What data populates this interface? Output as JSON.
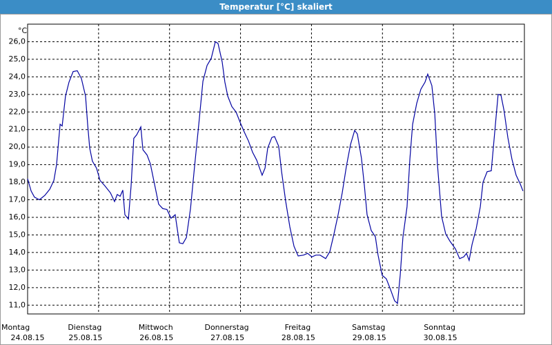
{
  "chart_data": {
    "type": "line",
    "title": "Temperatur [°C] skaliert",
    "y_unit": "°C",
    "xlim": [
      0,
      168
    ],
    "ylim": [
      10.5,
      27
    ],
    "grid": true,
    "xticks": [
      {
        "value": 0,
        "label": "Montag",
        "date": "24.08.15"
      },
      {
        "value": 24,
        "label": "Dienstag",
        "date": "25.08.15"
      },
      {
        "value": 48,
        "label": "Mittwoch",
        "date": "26.08.15"
      },
      {
        "value": 72,
        "label": "Donnerstag",
        "date": "27.08.15"
      },
      {
        "value": 96,
        "label": "Freitag",
        "date": "28.08.15"
      },
      {
        "value": 120,
        "label": "Samstag",
        "date": "29.08.15"
      },
      {
        "value": 144,
        "label": "Sonntag",
        "date": "30.08.15"
      }
    ],
    "yticks": [
      {
        "value": 11,
        "label": "11,0"
      },
      {
        "value": 12,
        "label": "12,0"
      },
      {
        "value": 13,
        "label": "13,0"
      },
      {
        "value": 14,
        "label": "14,0"
      },
      {
        "value": 15,
        "label": "15,0"
      },
      {
        "value": 16,
        "label": "16,0"
      },
      {
        "value": 17,
        "label": "17,0"
      },
      {
        "value": 18,
        "label": "18,0"
      },
      {
        "value": 19,
        "label": "19,0"
      },
      {
        "value": 20,
        "label": "20,0"
      },
      {
        "value": 21,
        "label": "21,0"
      },
      {
        "value": 22,
        "label": "22,0"
      },
      {
        "value": 23,
        "label": "23,0"
      },
      {
        "value": 24,
        "label": "24,0"
      },
      {
        "value": 25,
        "label": "25,0"
      },
      {
        "value": 26,
        "label": "26,0"
      }
    ],
    "series": [
      {
        "color": "#0000a0",
        "x": [
          0,
          1.2,
          2.3,
          4.0,
          5.8,
          7.5,
          8.9,
          9.8,
          11.0,
          11.7,
          12.8,
          14.0,
          15.4,
          16.8,
          18.2,
          19.6,
          20.3,
          21.0,
          21.9,
          23.3,
          24.5,
          26.1,
          28.0,
          29.4,
          30.3,
          31.3,
          32.2,
          32.9,
          34.1,
          35.0,
          35.9,
          36.9,
          38.3,
          39.0,
          40.4,
          41.5,
          42.9,
          44.3,
          45.7,
          47.1,
          48.5,
          49.9,
          51.3,
          52.5,
          53.7,
          55.1,
          56.5,
          57.9,
          59.3,
          60.7,
          62.1,
          63.5,
          64.4,
          65.8,
          66.7,
          67.7,
          69.1,
          70.5,
          71.9,
          73.3,
          74.7,
          76.1,
          77.5,
          79.3,
          80.3,
          81.2,
          82.6,
          83.5,
          84.9,
          85.9,
          87.3,
          88.7,
          90.1,
          91.5,
          93.3,
          94.7,
          96.1,
          97.5,
          98.9,
          100.8,
          102.2,
          103.6,
          105.0,
          106.4,
          107.8,
          109.2,
          110.6,
          111.5,
          112.9,
          113.9,
          114.8,
          116.2,
          117.6,
          118.5,
          119.9,
          121.3,
          122.7,
          124.1,
          125.1,
          126.0,
          126.9,
          128.3,
          129.3,
          130.2,
          131.6,
          133.0,
          134.4,
          135.3,
          136.7,
          137.7,
          138.6,
          140.0,
          141.4,
          142.8,
          144.7,
          146.1,
          147.5,
          148.4,
          149.3,
          150.3,
          151.7,
          153.1,
          154.0,
          155.4,
          156.8,
          158.2,
          159.1,
          160.1,
          161.1,
          162.4,
          163.8,
          165.2,
          166.6,
          167.5
        ],
        "values": [
          18.2,
          17.5,
          17.15,
          17.0,
          17.25,
          17.6,
          18.1,
          19.0,
          21.3,
          21.2,
          22.9,
          23.7,
          24.3,
          24.35,
          23.9,
          22.9,
          21.3,
          19.95,
          19.2,
          18.8,
          18.1,
          17.8,
          17.4,
          16.9,
          17.3,
          17.2,
          17.55,
          16.15,
          15.9,
          17.8,
          20.5,
          20.7,
          21.15,
          19.85,
          19.55,
          19.05,
          17.9,
          16.75,
          16.5,
          16.45,
          15.95,
          16.15,
          14.55,
          14.5,
          14.85,
          16.5,
          18.95,
          21.3,
          23.75,
          24.65,
          25.05,
          26.0,
          25.9,
          24.85,
          23.7,
          22.9,
          22.3,
          22.0,
          21.4,
          20.85,
          20.35,
          19.7,
          19.25,
          18.4,
          18.8,
          19.95,
          20.55,
          20.6,
          20.05,
          18.6,
          16.9,
          15.45,
          14.35,
          13.8,
          13.85,
          13.95,
          13.75,
          13.85,
          13.85,
          13.65,
          14.05,
          15.05,
          16.15,
          17.4,
          18.9,
          20.15,
          20.95,
          20.75,
          19.35,
          17.8,
          16.15,
          15.25,
          14.9,
          13.85,
          12.7,
          12.5,
          11.9,
          11.25,
          11.1,
          12.7,
          14.85,
          16.6,
          19.35,
          21.3,
          22.5,
          23.3,
          23.7,
          24.15,
          23.5,
          21.9,
          19.0,
          16.05,
          15.05,
          14.65,
          14.2,
          13.65,
          13.75,
          13.95,
          13.55,
          14.45,
          15.35,
          16.6,
          18.0,
          18.6,
          18.65,
          21.3,
          23.0,
          22.95,
          22.1,
          20.55,
          19.3,
          18.4,
          17.9,
          17.5
        ]
      }
    ]
  }
}
